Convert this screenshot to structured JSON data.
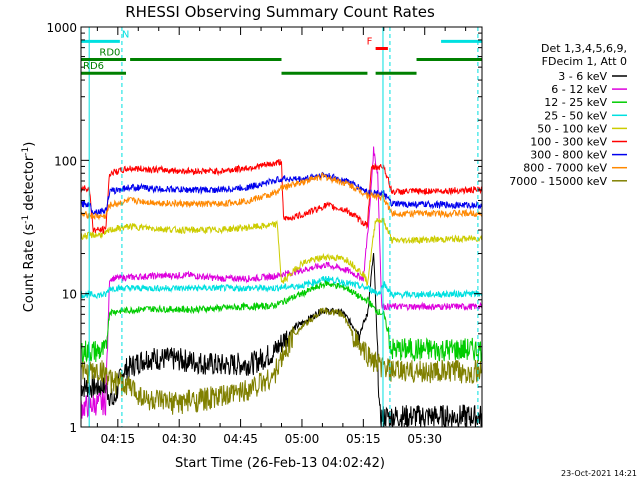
{
  "chart_data": {
    "type": "line",
    "title": "RHESSI Observing Summary Count Rates",
    "xlabel": "Start Time (26-Feb-13 04:02:42)",
    "ylabel_main": "Count Rate (s",
    "ylabel_sup1": "-1",
    "ylabel_mid": " detector",
    "ylabel_sup2": "-1",
    "ylabel_end": ")",
    "y_scale": "log",
    "ylim": [
      1,
      1000
    ],
    "y_ticks": [
      {
        "v": 1,
        "label": "1"
      },
      {
        "v": 10,
        "label": "10"
      },
      {
        "v": 100,
        "label": "100"
      },
      {
        "v": 1000,
        "label": "1000"
      }
    ],
    "xlim_min": [
      246,
      344
    ],
    "x_ticks": [
      {
        "m": 255,
        "label": "04:15"
      },
      {
        "m": 270,
        "label": "04:30"
      },
      {
        "m": 285,
        "label": "04:45"
      },
      {
        "m": 300,
        "label": "05:00"
      },
      {
        "m": 315,
        "label": "05:15"
      },
      {
        "m": 330,
        "label": "05:30"
      }
    ],
    "grid": false,
    "legend_position": "right",
    "legend_header": [
      "Det 1,3,4,5,6,9,",
      "FDecim 1, Att 0"
    ],
    "series": [
      {
        "name": "3 - 6 keV",
        "color": "#000000",
        "points": [
          [
            246,
            2
          ],
          [
            252,
            2
          ],
          [
            254,
            1.5
          ],
          [
            256,
            2.6
          ],
          [
            262,
            3.3
          ],
          [
            270,
            3.2
          ],
          [
            280,
            2.9
          ],
          [
            288,
            3.0
          ],
          [
            293,
            3.6
          ],
          [
            298,
            5.5
          ],
          [
            305,
            7.5
          ],
          [
            310,
            7.2
          ],
          [
            314,
            5.0
          ],
          [
            316,
            7
          ],
          [
            317.5,
            20
          ],
          [
            318,
            9
          ],
          [
            319,
            1.2
          ],
          [
            344,
            1.2
          ]
        ]
      },
      {
        "name": "6 - 12 keV",
        "color": "#dd00dd",
        "points": [
          [
            246,
            1.4
          ],
          [
            250,
            1.5
          ],
          [
            252,
            1.5
          ],
          [
            253,
            13
          ],
          [
            262,
            13.5
          ],
          [
            272,
            13.8
          ],
          [
            280,
            13
          ],
          [
            288,
            13
          ],
          [
            293,
            13.5
          ],
          [
            300,
            15
          ],
          [
            306,
            16.5
          ],
          [
            311,
            15
          ],
          [
            315,
            13
          ],
          [
            316.5,
            40
          ],
          [
            317.5,
            120
          ],
          [
            318.5,
            80
          ],
          [
            319.5,
            8
          ],
          [
            344,
            8
          ]
        ]
      },
      {
        "name": "12 - 25 keV",
        "color": "#00cc00",
        "points": [
          [
            246,
            3.7
          ],
          [
            252,
            3.7
          ],
          [
            253,
            7.3
          ],
          [
            262,
            7.7
          ],
          [
            272,
            7.6
          ],
          [
            280,
            7.8
          ],
          [
            288,
            8.0
          ],
          [
            293,
            8.1
          ],
          [
            300,
            10
          ],
          [
            306,
            12
          ],
          [
            311,
            11
          ],
          [
            315,
            9
          ],
          [
            316,
            9
          ],
          [
            318,
            7.5
          ],
          [
            320,
            7
          ],
          [
            322,
            3.8
          ],
          [
            344,
            3.8
          ]
        ]
      },
      {
        "name": "25 - 50 keV",
        "color": "#00e0e0",
        "points": [
          [
            246,
            9.8
          ],
          [
            252,
            9.8
          ],
          [
            253,
            11
          ],
          [
            262,
            11
          ],
          [
            272,
            11
          ],
          [
            280,
            11
          ],
          [
            288,
            11
          ],
          [
            293,
            11
          ],
          [
            300,
            11.5
          ],
          [
            306,
            13
          ],
          [
            311,
            12
          ],
          [
            316,
            11
          ],
          [
            319,
            10
          ],
          [
            320,
            12
          ],
          [
            322,
            9.8
          ],
          [
            344,
            10
          ]
        ]
      },
      {
        "name": "50 - 100 keV",
        "color": "#cccc00",
        "points": [
          [
            246,
            27
          ],
          [
            252,
            28
          ],
          [
            253,
            30
          ],
          [
            258,
            32
          ],
          [
            263,
            31
          ],
          [
            270,
            30
          ],
          [
            278,
            30
          ],
          [
            285,
            31
          ],
          [
            290,
            32
          ],
          [
            294,
            33
          ],
          [
            295,
            12
          ],
          [
            300,
            17
          ],
          [
            306,
            19
          ],
          [
            311,
            18
          ],
          [
            315,
            14
          ],
          [
            316,
            12
          ],
          [
            318,
            36
          ],
          [
            320,
            35
          ],
          [
            322,
            25
          ],
          [
            344,
            26
          ]
        ]
      },
      {
        "name": "100 - 300 keV",
        "color": "#ff0000",
        "points": [
          [
            246,
            62
          ],
          [
            248,
            62
          ],
          [
            249,
            30
          ],
          [
            252,
            30
          ],
          [
            253,
            80
          ],
          [
            258,
            87
          ],
          [
            265,
            85
          ],
          [
            272,
            83
          ],
          [
            280,
            83
          ],
          [
            287,
            88
          ],
          [
            293,
            94
          ],
          [
            295,
            98
          ],
          [
            295.5,
            36
          ],
          [
            300,
            39
          ],
          [
            306,
            46
          ],
          [
            311,
            42
          ],
          [
            315,
            34
          ],
          [
            316,
            33
          ],
          [
            317,
            88
          ],
          [
            320,
            90
          ],
          [
            322,
            58
          ],
          [
            344,
            60
          ]
        ]
      },
      {
        "name": "300 - 800 keV",
        "color": "#0000ee",
        "points": [
          [
            246,
            47
          ],
          [
            248,
            47
          ],
          [
            249,
            41
          ],
          [
            252,
            42
          ],
          [
            253,
            58
          ],
          [
            258,
            63
          ],
          [
            265,
            61
          ],
          [
            272,
            60
          ],
          [
            280,
            60
          ],
          [
            287,
            63
          ],
          [
            293,
            70
          ],
          [
            295,
            73
          ],
          [
            300,
            72
          ],
          [
            305,
            78
          ],
          [
            311,
            70
          ],
          [
            316,
            58
          ],
          [
            318,
            57
          ],
          [
            320,
            56
          ],
          [
            322,
            47
          ],
          [
            344,
            46
          ]
        ]
      },
      {
        "name": "800 - 7000 keV",
        "color": "#ff8800",
        "points": [
          [
            246,
            39
          ],
          [
            248,
            39
          ],
          [
            249,
            38
          ],
          [
            252,
            38
          ],
          [
            253,
            46
          ],
          [
            258,
            50
          ],
          [
            265,
            48
          ],
          [
            272,
            47
          ],
          [
            280,
            47
          ],
          [
            287,
            50
          ],
          [
            293,
            56
          ],
          [
            295,
            62
          ],
          [
            300,
            69
          ],
          [
            305,
            76
          ],
          [
            311,
            67
          ],
          [
            316,
            55
          ],
          [
            318,
            54
          ],
          [
            320,
            52
          ],
          [
            322,
            40
          ],
          [
            344,
            40
          ]
        ]
      },
      {
        "name": "7000 - 15000 keV",
        "color": "#808000",
        "points": [
          [
            246,
            2.6
          ],
          [
            252,
            2.6
          ],
          [
            253,
            2.2
          ],
          [
            258,
            2.0
          ],
          [
            262,
            1.6
          ],
          [
            268,
            1.5
          ],
          [
            275,
            1.6
          ],
          [
            282,
            1.7
          ],
          [
            288,
            2.0
          ],
          [
            293,
            2.4
          ],
          [
            298,
            5
          ],
          [
            305,
            7.5
          ],
          [
            310,
            7
          ],
          [
            314,
            4
          ],
          [
            316,
            3.5
          ],
          [
            318,
            3.0
          ],
          [
            322,
            2.6
          ],
          [
            344,
            2.6
          ]
        ]
      }
    ],
    "annotations": {
      "N": {
        "label": "N",
        "color": "#00e0e0",
        "y": 780,
        "segments": [
          [
            246,
            255.5
          ],
          [
            334,
            344
          ]
        ],
        "text_at": 256
      },
      "F": {
        "label": "F",
        "color": "#ff0000",
        "y": 690,
        "segments": [
          [
            318,
            321
          ]
        ],
        "text_at": 315.8
      },
      "RD0": {
        "label": "RD0",
        "color": "#008000",
        "y": 570,
        "segments": [
          [
            246,
            257
          ],
          [
            258,
            295
          ],
          [
            328,
            344
          ]
        ],
        "text_at": 250.5
      },
      "RD6": {
        "label": "RD6",
        "color": "#008000",
        "y": 450,
        "segments": [
          [
            246,
            257
          ],
          [
            295,
            316
          ],
          [
            318,
            328
          ]
        ],
        "text_at": 246.5
      }
    },
    "vlines": [
      {
        "m": 248,
        "color": "#00e0e0",
        "dashed": false
      },
      {
        "m": 256,
        "color": "#00e0e0",
        "dashed": true
      },
      {
        "m": 319.8,
        "color": "#00e0e0",
        "dashed": false
      },
      {
        "m": 321.5,
        "color": "#00e0e0",
        "dashed": true
      },
      {
        "m": 343,
        "color": "#00e0e0",
        "dashed": true
      }
    ]
  },
  "footer_date": "23-Oct-2021 14:21"
}
